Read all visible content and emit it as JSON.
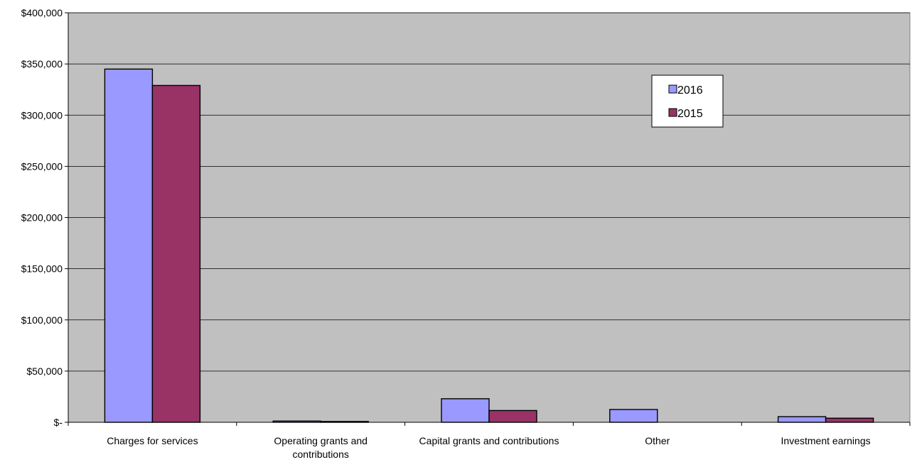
{
  "chart_data": {
    "type": "bar",
    "categories": [
      [
        "Charges for services"
      ],
      [
        "Operating grants and",
        "contributions"
      ],
      [
        "Capital grants and contributions"
      ],
      [
        "Other"
      ],
      [
        "Investment earnings"
      ]
    ],
    "series": [
      {
        "name": "2016",
        "color": "#9999ff",
        "values": [
          345000,
          1200,
          23000,
          12500,
          5500
        ]
      },
      {
        "name": "2015",
        "color": "#993366",
        "values": [
          329000,
          800,
          11500,
          0,
          4000
        ]
      }
    ],
    "ylim": [
      0,
      400000
    ],
    "yticks": [
      0,
      50000,
      100000,
      150000,
      200000,
      250000,
      300000,
      350000,
      400000
    ],
    "ytick_labels": [
      "$-",
      "$50,000",
      "$100,000",
      "$150,000",
      "$200,000",
      "$250,000",
      "$300,000",
      "$350,000",
      "$400,000"
    ],
    "plot_background": "#c0c0c0",
    "grid": true,
    "legend_position": "upper-right inside plot",
    "title": "",
    "xlabel": "",
    "ylabel": ""
  }
}
